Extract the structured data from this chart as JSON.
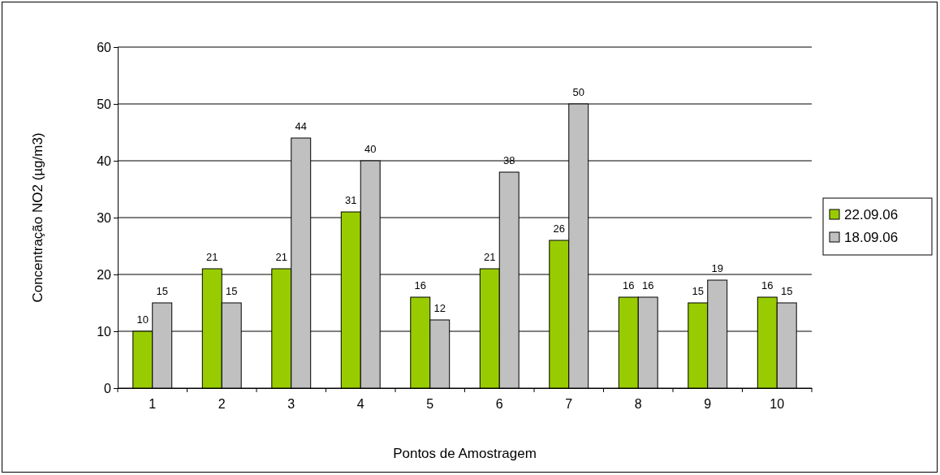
{
  "chart_data": {
    "type": "bar",
    "xlabel": "Pontos de Amostragem",
    "ylabel": "Concentração NO2 (µg/m3)",
    "categories": [
      "1",
      "2",
      "3",
      "4",
      "5",
      "6",
      "7",
      "8",
      "9",
      "10"
    ],
    "series": [
      {
        "name": "22.09.06",
        "color": "#99cc00",
        "values": [
          10,
          21,
          21,
          31,
          16,
          21,
          26,
          16,
          15,
          16
        ]
      },
      {
        "name": "18.09.06",
        "color": "#c0c0c0",
        "values": [
          15,
          15,
          44,
          40,
          12,
          38,
          50,
          16,
          19,
          15
        ]
      }
    ],
    "ylim": [
      0,
      60
    ],
    "yticks": [
      0,
      10,
      20,
      30,
      40,
      50,
      60
    ],
    "grid": "y",
    "legend": "right",
    "data_labels": true
  }
}
